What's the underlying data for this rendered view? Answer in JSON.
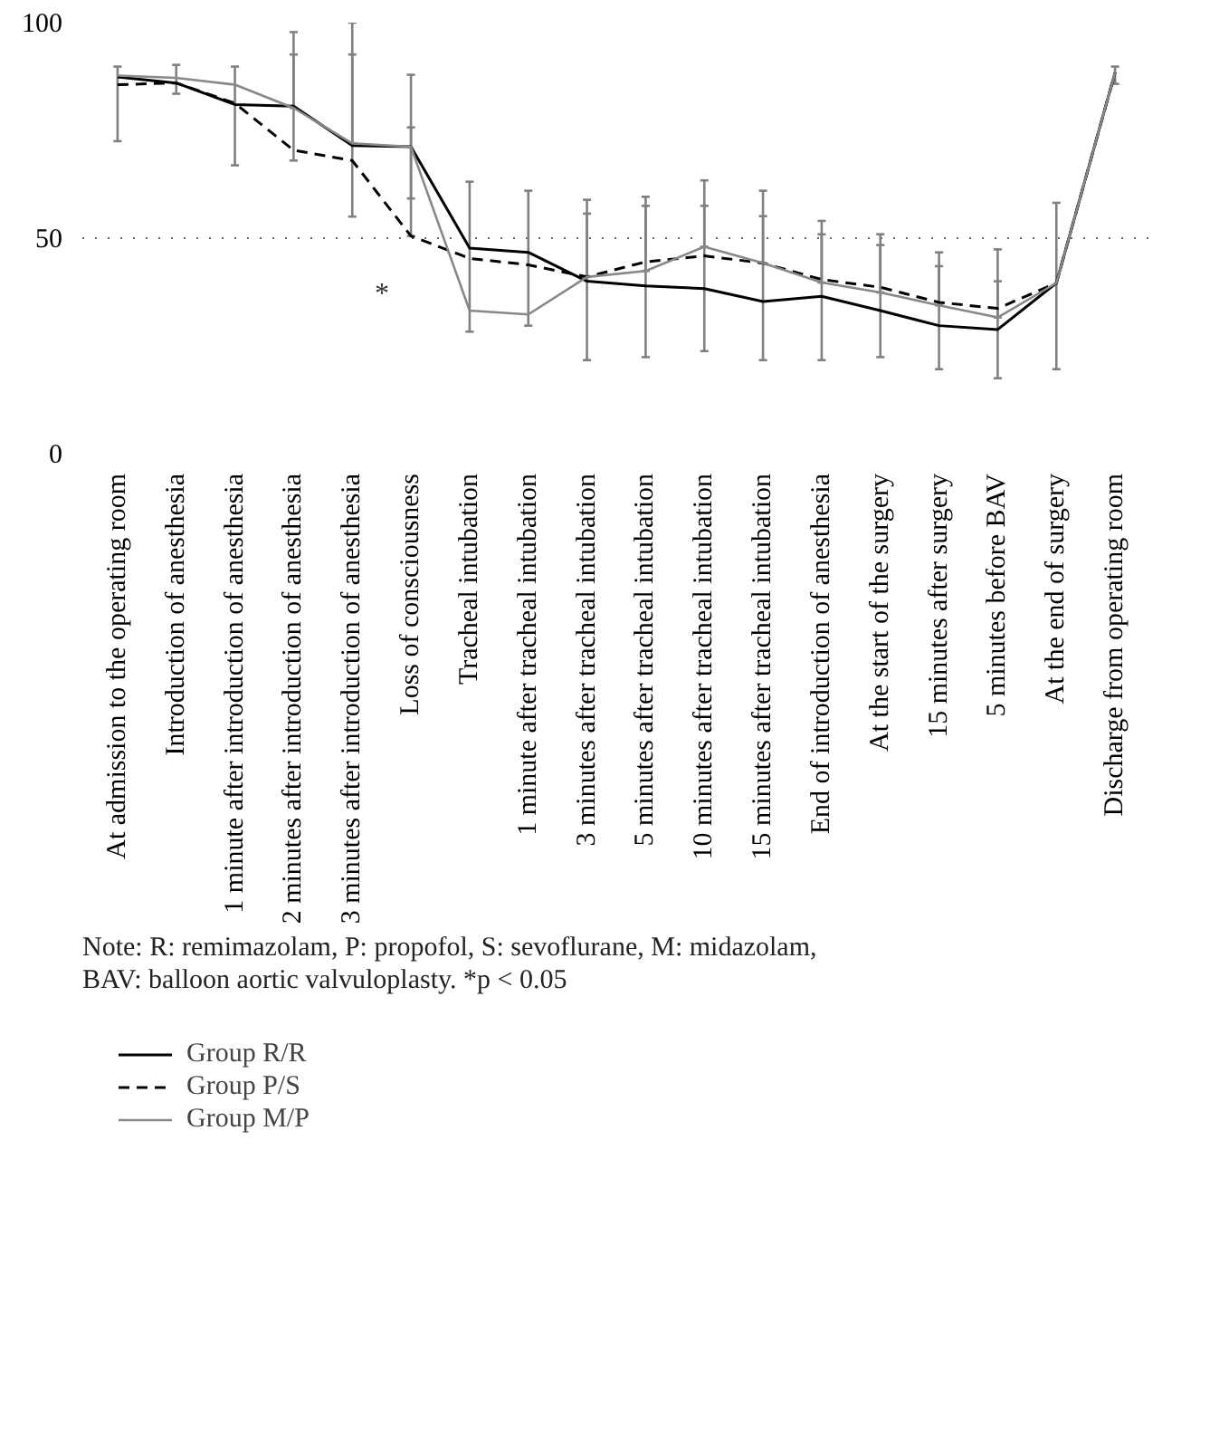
{
  "chart_data": {
    "type": "line",
    "categories": [
      "At admission to the operating room",
      "Introduction of anesthesia",
      "1 minute after introduction of anesthesia",
      "2 minutes after introduction of anesthesia",
      "3 minutes after introduction of anesthesia",
      "Loss of consciousness",
      "Tracheal intubation",
      "1 minute after tracheal intubation",
      "3 minutes after tracheal intubation",
      "5 minutes after tracheal intubation",
      "10 minutes after tracheal intubation",
      "15 minutes after tracheal intubation",
      "End of introduction of anesthesia",
      "At the start of the surgery",
      "15 minutes after surgery",
      "5 minutes before BAV",
      "At the end of surgery",
      "Discharge from operating room"
    ],
    "series": [
      {
        "name": "Group R/R",
        "color": "#000000",
        "line_style": "solid",
        "values": [
          87.4,
          86.0,
          81.0,
          80.6,
          71.5,
          71.2,
          47.7,
          46.7,
          40.0,
          38.9,
          38.3,
          35.3,
          36.5,
          33.2,
          29.7,
          28.8,
          39.6,
          88.4
        ],
        "errors": [
          [
            72.5,
            89.8
          ],
          [
            83.5,
            90.2
          ],
          [
            66.9,
            89.8
          ],
          [
            68.0,
            97.8
          ],
          [
            55.0,
            100.0
          ],
          [
            50.5,
            87.9
          ],
          [
            28.3,
            63.1
          ],
          [
            29.7,
            61.0
          ],
          [
            21.7,
            58.9
          ],
          [
            22.4,
            59.6
          ],
          [
            23.8,
            63.4
          ],
          [
            21.7,
            61.0
          ],
          [
            21.7,
            54.0
          ],
          [
            22.4,
            50.9
          ],
          [
            19.6,
            46.7
          ],
          [
            17.5,
            47.4
          ],
          [
            19.6,
            58.2
          ],
          [
            85.8,
            89.8
          ]
        ]
      },
      {
        "name": "Group P/S",
        "color": "#000000",
        "line_style": "dashed",
        "values": [
          85.6,
          86.0,
          81.3,
          70.4,
          68.0,
          50.5,
          45.3,
          43.8,
          41.0,
          44.5,
          45.9,
          44.2,
          40.4,
          38.6,
          35.1,
          33.7,
          39.6,
          88.4
        ]
      },
      {
        "name": "Group M/P",
        "color": "#888888",
        "line_style": "solid",
        "values": [
          87.7,
          87.2,
          85.6,
          80.2,
          72.0,
          71.2,
          33.2,
          32.3,
          41.0,
          42.4,
          48.0,
          44.2,
          39.7,
          37.4,
          34.4,
          31.6,
          39.6,
          88.4
        ],
        "errors": [
          null,
          null,
          null,
          [
            80.2,
            92.6
          ],
          [
            72.0,
            92.6
          ],
          [
            59.2,
            75.7
          ],
          null,
          null,
          [
            41.0,
            55.7
          ],
          [
            42.4,
            57.5
          ],
          [
            48.0,
            57.5
          ],
          [
            44.2,
            55.1
          ],
          [
            39.7,
            50.9
          ],
          [
            37.4,
            48.4
          ],
          [
            34.4,
            43.5
          ],
          [
            31.6,
            40.0
          ],
          null,
          null
        ]
      }
    ],
    "ylim": [
      0,
      100
    ],
    "yticks": [
      0,
      50,
      100
    ],
    "grid": "y",
    "legend": "bottom",
    "annotations": [
      {
        "text": "*",
        "x": "Loss of consciousness",
        "y": 50.5
      },
      "Note: R: remimazolam, P: propofol, S: sevoflurane, M: midazolam,",
      "BAV: balloon aortic valvuloplasty. *p < 0.05"
    ]
  }
}
